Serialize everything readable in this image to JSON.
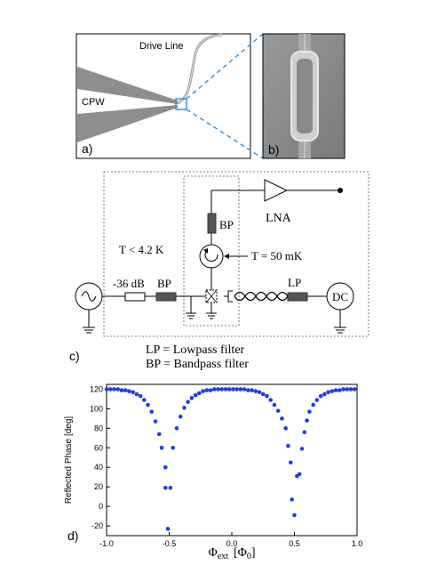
{
  "panel_a": {
    "label": "a)",
    "drive_line": "Drive Line",
    "cpw": "CPW"
  },
  "panel_b": {
    "label": "b)"
  },
  "panel_c": {
    "label": "c)",
    "temp_outer": "T < 4.2 K",
    "temp_inner": "T = 50 mK",
    "attenuator": "-36 dB",
    "bp_input": "BP",
    "bp_output": "BP",
    "lna": "LNA",
    "lp": "LP",
    "dc": "DC",
    "legend_lp": "LP = Lowpass filter",
    "legend_bp": "BP = Bandpass filter"
  },
  "panel_d": {
    "label": "d)"
  },
  "chart_data": {
    "type": "scatter",
    "xlabel_main": "Φ",
    "xlabel_sub": "ext",
    "xlabel_unit_open": "[Φ",
    "xlabel_unit_sub": "0",
    "xlabel_unit_close": "]",
    "ylabel": "Reflected Phase [deg]",
    "xlim": [
      -1.0,
      1.0
    ],
    "ylim": [
      -30,
      125
    ],
    "xticks": [
      "-1.0",
      "-0.5",
      "0.0",
      "0.5",
      "1.0"
    ],
    "yticks": [
      "-20",
      "0",
      "20",
      "40",
      "60",
      "80",
      "100",
      "120"
    ],
    "xtick_values": [
      -1.0,
      -0.5,
      0.0,
      0.5,
      1.0
    ],
    "ytick_values": [
      -20,
      0,
      20,
      40,
      60,
      80,
      100,
      120
    ],
    "color": "#1f3fe0",
    "points": [
      [
        -1.0,
        120
      ],
      [
        -0.97,
        120
      ],
      [
        -0.94,
        120
      ],
      [
        -0.91,
        120
      ],
      [
        -0.88,
        119
      ],
      [
        -0.85,
        119
      ],
      [
        -0.82,
        118
      ],
      [
        -0.79,
        117
      ],
      [
        -0.76,
        115
      ],
      [
        -0.73,
        113
      ],
      [
        -0.7,
        109
      ],
      [
        -0.67,
        104
      ],
      [
        -0.64,
        97
      ],
      [
        -0.61,
        87
      ],
      [
        -0.58,
        74
      ],
      [
        -0.56,
        60
      ],
      [
        -0.53,
        40
      ],
      [
        -0.53,
        19
      ],
      [
        -0.51,
        -23
      ],
      [
        -0.49,
        19
      ],
      [
        -0.47,
        60
      ],
      [
        -0.44,
        80
      ],
      [
        -0.41,
        92
      ],
      [
        -0.38,
        101
      ],
      [
        -0.35,
        107
      ],
      [
        -0.32,
        111
      ],
      [
        -0.29,
        114
      ],
      [
        -0.26,
        116
      ],
      [
        -0.23,
        118
      ],
      [
        -0.2,
        119
      ],
      [
        -0.17,
        119
      ],
      [
        -0.14,
        120
      ],
      [
        -0.11,
        120
      ],
      [
        -0.08,
        120
      ],
      [
        -0.05,
        120
      ],
      [
        -0.02,
        120
      ],
      [
        0.01,
        120
      ],
      [
        0.04,
        120
      ],
      [
        0.07,
        120
      ],
      [
        0.1,
        120
      ],
      [
        0.13,
        119
      ],
      [
        0.16,
        119
      ],
      [
        0.19,
        118
      ],
      [
        0.22,
        117
      ],
      [
        0.25,
        115
      ],
      [
        0.28,
        113
      ],
      [
        0.31,
        109
      ],
      [
        0.34,
        104
      ],
      [
        0.37,
        98
      ],
      [
        0.4,
        90
      ],
      [
        0.43,
        80
      ],
      [
        0.45,
        62
      ],
      [
        0.47,
        45
      ],
      [
        0.48,
        7
      ],
      [
        0.5,
        -9
      ],
      [
        0.52,
        31
      ],
      [
        0.54,
        33
      ],
      [
        0.56,
        59
      ],
      [
        0.58,
        76
      ],
      [
        0.6,
        88
      ],
      [
        0.62,
        97
      ],
      [
        0.65,
        104
      ],
      [
        0.68,
        109
      ],
      [
        0.71,
        113
      ],
      [
        0.74,
        115
      ],
      [
        0.77,
        117
      ],
      [
        0.8,
        118
      ],
      [
        0.83,
        119
      ],
      [
        0.86,
        119
      ],
      [
        0.89,
        120
      ],
      [
        0.92,
        120
      ],
      [
        0.95,
        120
      ],
      [
        0.98,
        120
      ]
    ]
  }
}
